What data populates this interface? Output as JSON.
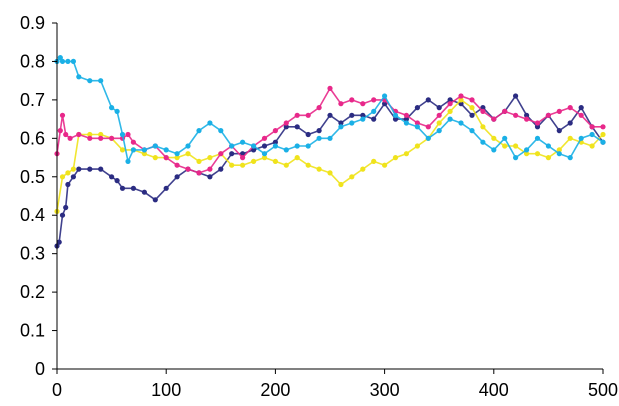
{
  "chart_data": {
    "type": "scatter",
    "title": "",
    "xlabel": "",
    "ylabel": "",
    "xlim": [
      0,
      500
    ],
    "ylim": [
      0,
      0.9
    ],
    "x_ticks": [
      0,
      100,
      200,
      300,
      400,
      500
    ],
    "x_tick_labels": [
      "0",
      "100",
      "200",
      "300",
      "400",
      "500"
    ],
    "y_ticks": [
      0,
      0.1,
      0.2,
      0.3,
      0.4,
      0.5,
      0.6,
      0.7,
      0.8,
      0.9
    ],
    "y_tick_labels": [
      "0",
      "0.1",
      "0.2",
      "0.3",
      "0.4",
      "0.5",
      "0.6",
      "0.7",
      "0.8",
      "0.9"
    ],
    "grid": false,
    "legend": "none",
    "series": [
      {
        "color": "#2B2C82",
        "points": [
          [
            0,
            0.32
          ],
          [
            2,
            0.33
          ],
          [
            5,
            0.4
          ],
          [
            8,
            0.42
          ],
          [
            10,
            0.48
          ],
          [
            15,
            0.5
          ],
          [
            20,
            0.52
          ],
          [
            30,
            0.52
          ],
          [
            40,
            0.52
          ],
          [
            50,
            0.5
          ],
          [
            55,
            0.49
          ],
          [
            60,
            0.47
          ],
          [
            70,
            0.47
          ],
          [
            80,
            0.46
          ],
          [
            90,
            0.44
          ],
          [
            100,
            0.47
          ],
          [
            110,
            0.5
          ],
          [
            120,
            0.52
          ],
          [
            130,
            0.51
          ],
          [
            140,
            0.5
          ],
          [
            150,
            0.52
          ],
          [
            160,
            0.56
          ],
          [
            170,
            0.56
          ],
          [
            180,
            0.57
          ],
          [
            190,
            0.58
          ],
          [
            200,
            0.59
          ],
          [
            210,
            0.63
          ],
          [
            220,
            0.63
          ],
          [
            230,
            0.61
          ],
          [
            240,
            0.62
          ],
          [
            250,
            0.66
          ],
          [
            260,
            0.64
          ],
          [
            270,
            0.66
          ],
          [
            280,
            0.66
          ],
          [
            290,
            0.65
          ],
          [
            300,
            0.69
          ],
          [
            310,
            0.65
          ],
          [
            320,
            0.65
          ],
          [
            330,
            0.68
          ],
          [
            340,
            0.7
          ],
          [
            350,
            0.68
          ],
          [
            360,
            0.7
          ],
          [
            370,
            0.69
          ],
          [
            380,
            0.66
          ],
          [
            390,
            0.68
          ],
          [
            400,
            0.65
          ],
          [
            410,
            0.67
          ],
          [
            420,
            0.71
          ],
          [
            430,
            0.66
          ],
          [
            440,
            0.63
          ],
          [
            450,
            0.66
          ],
          [
            460,
            0.62
          ],
          [
            470,
            0.64
          ],
          [
            480,
            0.68
          ],
          [
            490,
            0.63
          ],
          [
            500,
            0.59
          ]
        ]
      },
      {
        "color": "#F0E31C",
        "points": [
          [
            0,
            0.41
          ],
          [
            5,
            0.5
          ],
          [
            10,
            0.51
          ],
          [
            15,
            0.52
          ],
          [
            20,
            0.61
          ],
          [
            30,
            0.61
          ],
          [
            40,
            0.61
          ],
          [
            50,
            0.6
          ],
          [
            60,
            0.57
          ],
          [
            70,
            0.57
          ],
          [
            80,
            0.56
          ],
          [
            90,
            0.55
          ],
          [
            100,
            0.55
          ],
          [
            110,
            0.55
          ],
          [
            120,
            0.56
          ],
          [
            130,
            0.54
          ],
          [
            140,
            0.55
          ],
          [
            150,
            0.56
          ],
          [
            160,
            0.53
          ],
          [
            170,
            0.53
          ],
          [
            180,
            0.54
          ],
          [
            190,
            0.55
          ],
          [
            200,
            0.54
          ],
          [
            210,
            0.53
          ],
          [
            220,
            0.55
          ],
          [
            230,
            0.53
          ],
          [
            240,
            0.52
          ],
          [
            250,
            0.51
          ],
          [
            260,
            0.48
          ],
          [
            270,
            0.5
          ],
          [
            280,
            0.52
          ],
          [
            290,
            0.54
          ],
          [
            300,
            0.53
          ],
          [
            310,
            0.55
          ],
          [
            320,
            0.56
          ],
          [
            330,
            0.58
          ],
          [
            340,
            0.6
          ],
          [
            350,
            0.64
          ],
          [
            360,
            0.67
          ],
          [
            370,
            0.7
          ],
          [
            380,
            0.68
          ],
          [
            390,
            0.63
          ],
          [
            400,
            0.6
          ],
          [
            410,
            0.58
          ],
          [
            420,
            0.58
          ],
          [
            430,
            0.56
          ],
          [
            440,
            0.56
          ],
          [
            450,
            0.55
          ],
          [
            460,
            0.57
          ],
          [
            470,
            0.6
          ],
          [
            480,
            0.59
          ],
          [
            490,
            0.58
          ],
          [
            500,
            0.61
          ]
        ]
      },
      {
        "color": "#E8288A",
        "points": [
          [
            0,
            0.56
          ],
          [
            3,
            0.62
          ],
          [
            5,
            0.66
          ],
          [
            8,
            0.61
          ],
          [
            12,
            0.6
          ],
          [
            20,
            0.61
          ],
          [
            30,
            0.6
          ],
          [
            40,
            0.6
          ],
          [
            50,
            0.6
          ],
          [
            60,
            0.6
          ],
          [
            65,
            0.61
          ],
          [
            70,
            0.59
          ],
          [
            80,
            0.57
          ],
          [
            90,
            0.58
          ],
          [
            100,
            0.55
          ],
          [
            110,
            0.53
          ],
          [
            120,
            0.52
          ],
          [
            130,
            0.51
          ],
          [
            140,
            0.52
          ],
          [
            150,
            0.56
          ],
          [
            160,
            0.58
          ],
          [
            170,
            0.55
          ],
          [
            180,
            0.58
          ],
          [
            190,
            0.6
          ],
          [
            200,
            0.62
          ],
          [
            210,
            0.64
          ],
          [
            220,
            0.66
          ],
          [
            230,
            0.66
          ],
          [
            240,
            0.68
          ],
          [
            250,
            0.73
          ],
          [
            260,
            0.69
          ],
          [
            270,
            0.7
          ],
          [
            280,
            0.69
          ],
          [
            290,
            0.7
          ],
          [
            300,
            0.7
          ],
          [
            310,
            0.67
          ],
          [
            320,
            0.66
          ],
          [
            330,
            0.64
          ],
          [
            340,
            0.63
          ],
          [
            350,
            0.66
          ],
          [
            360,
            0.69
          ],
          [
            370,
            0.71
          ],
          [
            380,
            0.7
          ],
          [
            390,
            0.67
          ],
          [
            400,
            0.65
          ],
          [
            410,
            0.67
          ],
          [
            420,
            0.66
          ],
          [
            430,
            0.65
          ],
          [
            440,
            0.64
          ],
          [
            450,
            0.66
          ],
          [
            460,
            0.67
          ],
          [
            470,
            0.68
          ],
          [
            480,
            0.66
          ],
          [
            490,
            0.63
          ],
          [
            500,
            0.63
          ]
        ]
      },
      {
        "color": "#1AB0E6",
        "points": [
          [
            0,
            0.8
          ],
          [
            3,
            0.81
          ],
          [
            5,
            0.8
          ],
          [
            10,
            0.8
          ],
          [
            15,
            0.8
          ],
          [
            20,
            0.76
          ],
          [
            30,
            0.75
          ],
          [
            40,
            0.75
          ],
          [
            50,
            0.68
          ],
          [
            55,
            0.67
          ],
          [
            60,
            0.61
          ],
          [
            65,
            0.54
          ],
          [
            70,
            0.57
          ],
          [
            80,
            0.57
          ],
          [
            90,
            0.58
          ],
          [
            100,
            0.57
          ],
          [
            110,
            0.56
          ],
          [
            120,
            0.58
          ],
          [
            130,
            0.62
          ],
          [
            140,
            0.64
          ],
          [
            150,
            0.62
          ],
          [
            160,
            0.58
          ],
          [
            170,
            0.59
          ],
          [
            180,
            0.58
          ],
          [
            190,
            0.56
          ],
          [
            200,
            0.58
          ],
          [
            210,
            0.57
          ],
          [
            220,
            0.58
          ],
          [
            230,
            0.58
          ],
          [
            240,
            0.6
          ],
          [
            250,
            0.6
          ],
          [
            260,
            0.63
          ],
          [
            270,
            0.64
          ],
          [
            280,
            0.65
          ],
          [
            290,
            0.67
          ],
          [
            300,
            0.71
          ],
          [
            310,
            0.66
          ],
          [
            320,
            0.64
          ],
          [
            330,
            0.63
          ],
          [
            340,
            0.6
          ],
          [
            350,
            0.62
          ],
          [
            360,
            0.65
          ],
          [
            370,
            0.64
          ],
          [
            380,
            0.62
          ],
          [
            390,
            0.59
          ],
          [
            400,
            0.57
          ],
          [
            410,
            0.6
          ],
          [
            420,
            0.55
          ],
          [
            430,
            0.57
          ],
          [
            440,
            0.6
          ],
          [
            450,
            0.58
          ],
          [
            460,
            0.56
          ],
          [
            470,
            0.55
          ],
          [
            480,
            0.6
          ],
          [
            490,
            0.61
          ],
          [
            500,
            0.59
          ]
        ]
      }
    ]
  }
}
